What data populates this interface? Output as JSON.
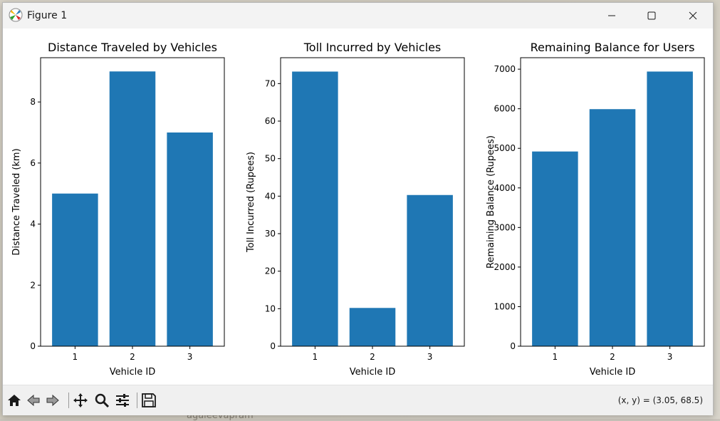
{
  "window": {
    "title": "Figure 1"
  },
  "toolbar": {
    "coords": "(x, y) = (3.05, 68.5)",
    "icons": [
      "home-icon",
      "back-icon",
      "forward-icon",
      "pan-icon",
      "zoom-icon",
      "configure-icon",
      "save-icon"
    ]
  },
  "backdrop": {
    "text": "agaleevapram"
  },
  "colors": {
    "bar": "#1f77b4"
  },
  "chart_data": [
    {
      "type": "bar",
      "title": "Distance Traveled by Vehicles",
      "xlabel": "Vehicle ID",
      "ylabel": "Distance Traveled (km)",
      "categories": [
        "1",
        "2",
        "3"
      ],
      "values": [
        5,
        9,
        7
      ],
      "ylim": [
        0,
        9.45
      ],
      "yticks": [
        0,
        2,
        4,
        6,
        8
      ]
    },
    {
      "type": "bar",
      "title": "Toll Incurred by Vehicles",
      "xlabel": "Vehicle ID",
      "ylabel": "Toll Incurred (Rupees)",
      "categories": [
        "1",
        "2",
        "3"
      ],
      "values": [
        73.2,
        10.2,
        40.3
      ],
      "ylim": [
        0,
        76.9
      ],
      "yticks": [
        0,
        10,
        20,
        30,
        40,
        50,
        60,
        70
      ]
    },
    {
      "type": "bar",
      "title": "Remaining Balance for Users",
      "xlabel": "Vehicle ID",
      "ylabel": "Remaining Balance (Rupees)",
      "categories": [
        "1",
        "2",
        "3"
      ],
      "values": [
        4920,
        5990,
        6940
      ],
      "ylim": [
        0,
        7290
      ],
      "yticks": [
        0,
        1000,
        2000,
        3000,
        4000,
        5000,
        6000,
        7000
      ]
    }
  ]
}
